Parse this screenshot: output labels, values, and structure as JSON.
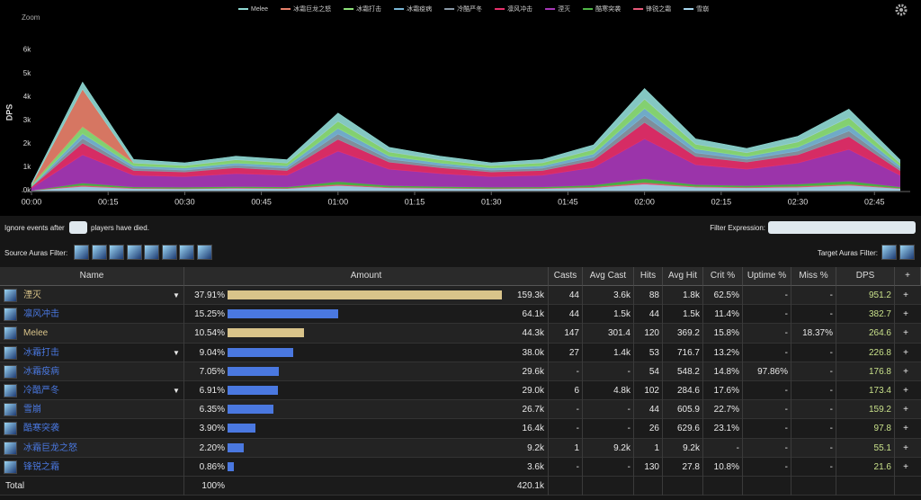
{
  "chart_data": {
    "type": "stacked-area",
    "zoom_button": "Zoom",
    "y_label": "DPS",
    "x": [
      0,
      10,
      20,
      30,
      40,
      50,
      60,
      70,
      80,
      90,
      100,
      110,
      120,
      130,
      140,
      150,
      160,
      170
    ],
    "xlim": [
      0,
      172
    ],
    "xticks": [
      {
        "value": 0,
        "label": "00:00"
      },
      {
        "value": 15,
        "label": "00:15"
      },
      {
        "value": 30,
        "label": "00:30"
      },
      {
        "value": 45,
        "label": "00:45"
      },
      {
        "value": 60,
        "label": "01:00"
      },
      {
        "value": 75,
        "label": "01:15"
      },
      {
        "value": 90,
        "label": "01:30"
      },
      {
        "value": 105,
        "label": "01:45"
      },
      {
        "value": 120,
        "label": "02:00"
      },
      {
        "value": 135,
        "label": "02:15"
      },
      {
        "value": 150,
        "label": "02:30"
      },
      {
        "value": 165,
        "label": "02:45"
      }
    ],
    "ylim": [
      0,
      6.6
    ],
    "yticks": [
      {
        "value": 0,
        "label": "0k"
      },
      {
        "value": 1,
        "label": "1k"
      },
      {
        "value": 2,
        "label": "2k"
      },
      {
        "value": 3,
        "label": "3k"
      },
      {
        "value": 4,
        "label": "4k"
      },
      {
        "value": 5,
        "label": "5k"
      },
      {
        "value": 6,
        "label": "6k"
      }
    ],
    "grid": false,
    "series": [
      {
        "name": "Melee",
        "color": "#8fd8d2",
        "values": [
          0.05,
          0.3,
          0.15,
          0.12,
          0.15,
          0.14,
          0.35,
          0.2,
          0.15,
          0.12,
          0.14,
          0.2,
          0.45,
          0.23,
          0.18,
          0.24,
          0.36,
          0.14
        ]
      },
      {
        "name": "冰霜巨龙之怒",
        "color": "#e8806a",
        "values": [
          0,
          1.6,
          0,
          0,
          0,
          0,
          0,
          0,
          0,
          0,
          0,
          0,
          0,
          0,
          0,
          0,
          0,
          0
        ]
      },
      {
        "name": "冰霜打击",
        "color": "#8ee27a",
        "values": [
          0.05,
          0.3,
          0.12,
          0.1,
          0.14,
          0.12,
          0.3,
          0.17,
          0.14,
          0.1,
          0.13,
          0.18,
          0.4,
          0.2,
          0.16,
          0.22,
          0.32,
          0.12
        ]
      },
      {
        "name": "冰霜疫病",
        "color": "#7ab8d8",
        "values": [
          0.02,
          0.2,
          0.1,
          0.09,
          0.1,
          0.1,
          0.24,
          0.13,
          0.1,
          0.09,
          0.1,
          0.14,
          0.3,
          0.16,
          0.12,
          0.17,
          0.25,
          0.1
        ]
      },
      {
        "name": "冷酷严冬",
        "color": "#8a9aa8",
        "values": [
          0.02,
          0.2,
          0.1,
          0.08,
          0.1,
          0.1,
          0.23,
          0.13,
          0.1,
          0.08,
          0.1,
          0.14,
          0.3,
          0.16,
          0.12,
          0.16,
          0.24,
          0.1
        ]
      },
      {
        "name": "凛风冲击",
        "color": "#e8306c",
        "values": [
          0.05,
          0.5,
          0.2,
          0.2,
          0.25,
          0.2,
          0.5,
          0.3,
          0.25,
          0.2,
          0.2,
          0.3,
          0.7,
          0.35,
          0.3,
          0.35,
          0.55,
          0.2
        ]
      },
      {
        "name": "湮灭",
        "color": "#a838b8",
        "values": [
          0.1,
          1.2,
          0.5,
          0.45,
          0.55,
          0.5,
          1.3,
          0.7,
          0.55,
          0.45,
          0.5,
          0.75,
          1.7,
          0.85,
          0.7,
          0.9,
          1.35,
          0.5
        ]
      },
      {
        "name": "酷寒突袭",
        "color": "#50b848",
        "values": [
          0,
          0.1,
          0.05,
          0.05,
          0.06,
          0.05,
          0.12,
          0.07,
          0.06,
          0.05,
          0.05,
          0.08,
          0.16,
          0.08,
          0.07,
          0.09,
          0.13,
          0.05
        ]
      },
      {
        "name": "锋锐之霜",
        "color": "#e85a7a",
        "values": [
          0,
          0.05,
          0.02,
          0.02,
          0.02,
          0.02,
          0.05,
          0.03,
          0.02,
          0.02,
          0.02,
          0.03,
          0.07,
          0.03,
          0.03,
          0.04,
          0.05,
          0.02
        ]
      },
      {
        "name": "雪崩",
        "color": "#a8d8f0",
        "values": [
          0.01,
          0.18,
          0.09,
          0.08,
          0.1,
          0.09,
          0.22,
          0.12,
          0.1,
          0.08,
          0.09,
          0.13,
          0.28,
          0.15,
          0.12,
          0.15,
          0.23,
          0.09
        ]
      }
    ]
  },
  "controls": {
    "ignore_before": "Ignore events after",
    "ignore_after": "players have died.",
    "filter_expression": "Filter Expression:",
    "source_auras": "Source Auras Filter:",
    "target_auras": "Target Auras Filter:"
  },
  "table": {
    "columns": [
      "Name",
      "Amount",
      "Casts",
      "Avg Cast",
      "Hits",
      "Avg Hit",
      "Crit %",
      "Uptime %",
      "Miss %",
      "DPS",
      "+"
    ],
    "plus": "+",
    "rows": [
      {
        "name": "湮灭",
        "color": "#d9c48a",
        "expandable": true,
        "share": 37.91,
        "share_label": "37.91%",
        "amount": "159.3k",
        "casts": "44",
        "avg_cast": "3.6k",
        "hits": "88",
        "avg_hit": "1.8k",
        "crit": "62.5%",
        "uptime": "-",
        "miss": "-",
        "dps": "951.2"
      },
      {
        "name": "凛风冲击",
        "color": "#4a78e0",
        "expandable": false,
        "share": 15.25,
        "share_label": "15.25%",
        "amount": "64.1k",
        "casts": "44",
        "avg_cast": "1.5k",
        "hits": "44",
        "avg_hit": "1.5k",
        "crit": "11.4%",
        "uptime": "-",
        "miss": "-",
        "dps": "382.7"
      },
      {
        "name": "Melee",
        "color": "#d9c48a",
        "expandable": false,
        "share": 10.54,
        "share_label": "10.54%",
        "amount": "44.3k",
        "casts": "147",
        "avg_cast": "301.4",
        "hits": "120",
        "avg_hit": "369.2",
        "crit": "15.8%",
        "uptime": "-",
        "miss": "18.37%",
        "dps": "264.6"
      },
      {
        "name": "冰霜打击",
        "color": "#4a78e0",
        "expandable": true,
        "share": 9.04,
        "share_label": "9.04%",
        "amount": "38.0k",
        "casts": "27",
        "avg_cast": "1.4k",
        "hits": "53",
        "avg_hit": "716.7",
        "crit": "13.2%",
        "uptime": "-",
        "miss": "-",
        "dps": "226.8"
      },
      {
        "name": "冰霜疫病",
        "color": "#4a78e0",
        "expandable": false,
        "share": 7.05,
        "share_label": "7.05%",
        "amount": "29.6k",
        "casts": "-",
        "avg_cast": "-",
        "hits": "54",
        "avg_hit": "548.2",
        "crit": "14.8%",
        "uptime": "97.86%",
        "miss": "-",
        "dps": "176.8"
      },
      {
        "name": "冷酷严冬",
        "color": "#4a78e0",
        "expandable": true,
        "share": 6.91,
        "share_label": "6.91%",
        "amount": "29.0k",
        "casts": "6",
        "avg_cast": "4.8k",
        "hits": "102",
        "avg_hit": "284.6",
        "crit": "17.6%",
        "uptime": "-",
        "miss": "-",
        "dps": "173.4"
      },
      {
        "name": "雪崩",
        "color": "#4a78e0",
        "expandable": false,
        "share": 6.35,
        "share_label": "6.35%",
        "amount": "26.7k",
        "casts": "-",
        "avg_cast": "-",
        "hits": "44",
        "avg_hit": "605.9",
        "crit": "22.7%",
        "uptime": "-",
        "miss": "-",
        "dps": "159.2"
      },
      {
        "name": "酷寒突袭",
        "color": "#4a78e0",
        "expandable": false,
        "share": 3.9,
        "share_label": "3.90%",
        "amount": "16.4k",
        "casts": "-",
        "avg_cast": "-",
        "hits": "26",
        "avg_hit": "629.6",
        "crit": "23.1%",
        "uptime": "-",
        "miss": "-",
        "dps": "97.8"
      },
      {
        "name": "冰霜巨龙之怒",
        "color": "#4a78e0",
        "expandable": false,
        "share": 2.2,
        "share_label": "2.20%",
        "amount": "9.2k",
        "casts": "1",
        "avg_cast": "9.2k",
        "hits": "1",
        "avg_hit": "9.2k",
        "crit": "-",
        "uptime": "-",
        "miss": "-",
        "dps": "55.1"
      },
      {
        "name": "锋锐之霜",
        "color": "#4a78e0",
        "expandable": false,
        "share": 0.86,
        "share_label": "0.86%",
        "amount": "3.6k",
        "casts": "-",
        "avg_cast": "-",
        "hits": "130",
        "avg_hit": "27.8",
        "crit": "10.8%",
        "uptime": "-",
        "miss": "-",
        "dps": "21.6"
      }
    ],
    "total": {
      "name": "Total",
      "share_label": "100%",
      "amount": "420.1k"
    }
  }
}
